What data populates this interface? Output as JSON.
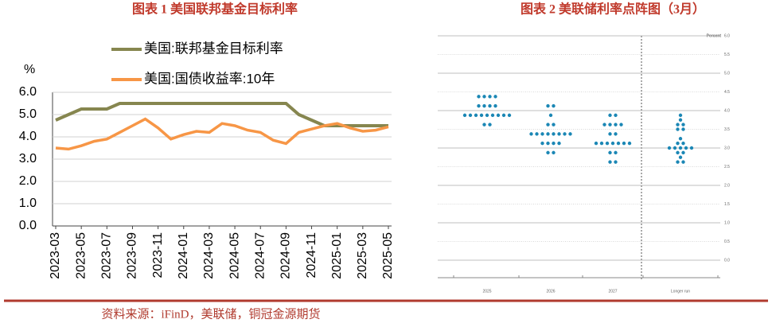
{
  "chart_data": [
    {
      "type": "line",
      "title": "图表 1 美国联邦基金目标利率",
      "y_label": "%",
      "categories": [
        "2023-03",
        null,
        "2023-05",
        null,
        "2023-07",
        null,
        "2023-09",
        null,
        "2023-11",
        null,
        "2024-01",
        null,
        "2024-03",
        null,
        "2024-05",
        null,
        "2024-07",
        null,
        "2024-09",
        null,
        "2024-11",
        null,
        "2025-01",
        null,
        "2025-03",
        null,
        "2025-05"
      ],
      "series": [
        {
          "name": "美国:联邦基金目标利率",
          "color": "#86864f",
          "values": [
            4.75,
            5.0,
            5.25,
            5.25,
            5.25,
            5.5,
            5.5,
            5.5,
            5.5,
            5.5,
            5.5,
            5.5,
            5.5,
            5.5,
            5.5,
            5.5,
            5.5,
            5.5,
            5.5,
            5.0,
            4.75,
            4.5,
            4.5,
            4.5,
            4.5,
            4.5,
            4.5
          ]
        },
        {
          "name": "美国:国债收益率:10年",
          "color": "#f79646",
          "values": [
            3.5,
            3.45,
            3.6,
            3.8,
            3.9,
            4.2,
            4.5,
            4.8,
            4.4,
            3.9,
            4.1,
            4.25,
            4.2,
            4.6,
            4.5,
            4.3,
            4.2,
            3.85,
            3.7,
            4.2,
            4.35,
            4.5,
            4.6,
            4.4,
            4.25,
            4.3,
            4.45
          ]
        }
      ],
      "ylim": [
        0,
        6
      ],
      "yticks": [
        {
          "value": 0,
          "label": "0.0"
        },
        {
          "value": 1,
          "label": "1.0"
        },
        {
          "value": 2,
          "label": "2.0"
        },
        {
          "value": 3,
          "label": "3.0"
        },
        {
          "value": 4,
          "label": "4.0"
        },
        {
          "value": 5,
          "label": "5.0"
        },
        {
          "value": 6,
          "label": "6.0"
        }
      ],
      "grid": true
    },
    {
      "type": "dotplot",
      "title": "图表 2 美联储利率点阵图（3月）",
      "y_label": "Percent",
      "color": "#1b87b5",
      "categories": [
        "2025",
        "2026",
        "2027",
        "Longer run"
      ],
      "values": [
        [
          4.375,
          4.375,
          4.375,
          4.375,
          4.125,
          4.125,
          4.125,
          4.125,
          3.875,
          3.875,
          3.875,
          3.875,
          3.875,
          3.875,
          3.875,
          3.875,
          3.875,
          3.625,
          3.625
        ],
        [
          4.125,
          4.125,
          3.875,
          3.625,
          3.625,
          3.375,
          3.375,
          3.375,
          3.375,
          3.375,
          3.375,
          3.375,
          3.375,
          3.125,
          3.125,
          3.125,
          3.125,
          2.875,
          2.875
        ],
        [
          3.875,
          3.875,
          3.625,
          3.625,
          3.625,
          3.625,
          3.375,
          3.375,
          3.125,
          3.125,
          3.125,
          3.125,
          3.125,
          3.125,
          3.125,
          2.875,
          2.875,
          2.625,
          2.625
        ],
        [
          3.875,
          3.75,
          3.625,
          3.625,
          3.5,
          3.5,
          3.25,
          3.125,
          3.125,
          3.0,
          3.0,
          3.0,
          3.0,
          3.0,
          2.875,
          2.875,
          2.75,
          2.625,
          2.625
        ]
      ],
      "ylim": [
        0,
        6
      ],
      "yticks": [
        {
          "value": 0,
          "label": "0.0"
        },
        {
          "value": 0.5,
          "label": "0.5"
        },
        {
          "value": 1,
          "label": "1.0"
        },
        {
          "value": 1.5,
          "label": "1.5"
        },
        {
          "value": 2,
          "label": "2.0"
        },
        {
          "value": 2.5,
          "label": "2.5"
        },
        {
          "value": 3,
          "label": "3.0"
        },
        {
          "value": 3.5,
          "label": "3.5"
        },
        {
          "value": 4,
          "label": "4.0"
        },
        {
          "value": 4.5,
          "label": "4.5"
        },
        {
          "value": 5,
          "label": "5.0"
        },
        {
          "value": 5.5,
          "label": "5.5"
        },
        {
          "value": 6,
          "label": "6.0"
        }
      ],
      "grid": true
    }
  ],
  "source": "资料来源：iFinD，美联储，铜冠金源期货"
}
